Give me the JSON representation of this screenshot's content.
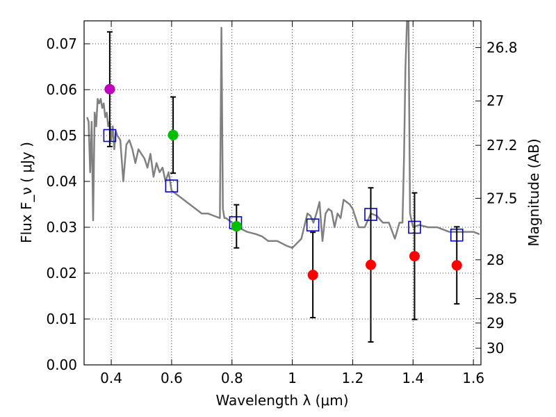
{
  "chart_data": {
    "type": "scatter",
    "xlabel": "Wavelength  λ (μm)",
    "ylabel": "Flux  F_ν  ( μJy )",
    "ylabel_right": "Magnitude (AB)",
    "xlim": [
      0.31,
      1.625
    ],
    "ylim": [
      0.0,
      0.075
    ],
    "grid": true,
    "x_ticks": [
      0.4,
      0.6,
      0.8,
      1.0,
      1.2,
      1.4,
      1.6
    ],
    "x_tick_labels": [
      "0.4",
      "0.6",
      "0.8",
      "1",
      "1.2",
      "1.4",
      "1.6"
    ],
    "y_ticks": [
      0.0,
      0.01,
      0.02,
      0.03,
      0.04,
      0.05,
      0.06,
      0.07
    ],
    "y_tick_labels": [
      "0.00",
      "0.01",
      "0.02",
      "0.03",
      "0.04",
      "0.05",
      "0.06",
      "0.07"
    ],
    "right_ticks": [
      {
        "mag": 26.8,
        "label": "26.8"
      },
      {
        "mag": 27.0,
        "label": "27"
      },
      {
        "mag": 27.2,
        "label": "27.2"
      },
      {
        "mag": 27.5,
        "label": "27.5"
      },
      {
        "mag": 28.0,
        "label": "28"
      },
      {
        "mag": 28.5,
        "label": "28.5"
      },
      {
        "mag": 29.0,
        "label": "29"
      },
      {
        "mag": 30.0,
        "label": "30"
      }
    ],
    "colors": {
      "model_line": "#808080",
      "model_box": "#0000cc",
      "error_bar": "#000000",
      "magenta": "#bf00bf",
      "green": "#00bf00",
      "red": "#ff0000",
      "grid": "#808080"
    },
    "series": [
      {
        "kind": "line",
        "color_key": "model_line",
        "x": [
          0.32,
          0.325,
          0.33,
          0.335,
          0.34,
          0.345,
          0.35,
          0.355,
          0.36,
          0.365,
          0.37,
          0.375,
          0.38,
          0.385,
          0.39,
          0.395,
          0.4,
          0.405,
          0.41,
          0.415,
          0.42,
          0.43,
          0.44,
          0.45,
          0.46,
          0.47,
          0.48,
          0.49,
          0.5,
          0.51,
          0.52,
          0.53,
          0.54,
          0.55,
          0.56,
          0.57,
          0.58,
          0.59,
          0.6,
          0.62,
          0.64,
          0.66,
          0.68,
          0.7,
          0.72,
          0.74,
          0.76,
          0.765,
          0.77,
          0.775,
          0.78,
          0.8,
          0.82,
          0.85,
          0.88,
          0.9,
          0.92,
          0.95,
          0.98,
          1.0,
          1.03,
          1.05,
          1.06,
          1.07,
          1.08,
          1.09,
          1.1,
          1.11,
          1.12,
          1.13,
          1.14,
          1.15,
          1.16,
          1.17,
          1.18,
          1.19,
          1.2,
          1.22,
          1.24,
          1.26,
          1.28,
          1.3,
          1.32,
          1.34,
          1.355,
          1.36,
          1.365,
          1.37,
          1.375,
          1.38,
          1.385,
          1.39,
          1.4,
          1.42,
          1.45,
          1.48,
          1.5,
          1.52,
          1.55,
          1.58,
          1.6,
          1.62
        ],
        "y": [
          0.054,
          0.053,
          0.042,
          0.053,
          0.0315,
          0.055,
          0.052,
          0.058,
          0.057,
          0.058,
          0.056,
          0.057,
          0.054,
          0.055,
          0.052,
          0.053,
          0.049,
          0.052,
          0.047,
          0.051,
          0.05,
          0.049,
          0.04,
          0.048,
          0.049,
          0.047,
          0.044,
          0.047,
          0.046,
          0.045,
          0.043,
          0.046,
          0.041,
          0.044,
          0.042,
          0.043,
          0.04,
          0.042,
          0.038,
          0.037,
          0.036,
          0.035,
          0.034,
          0.033,
          0.033,
          0.0325,
          0.032,
          0.0735,
          0.034,
          0.032,
          0.032,
          0.031,
          0.03,
          0.029,
          0.0285,
          0.028,
          0.027,
          0.027,
          0.026,
          0.0255,
          0.0275,
          0.033,
          0.0325,
          0.031,
          0.033,
          0.0355,
          0.027,
          0.033,
          0.034,
          0.0335,
          0.03,
          0.033,
          0.032,
          0.036,
          0.0355,
          0.035,
          0.034,
          0.03,
          0.03,
          0.033,
          0.0325,
          0.031,
          0.031,
          0.0275,
          0.031,
          0.031,
          0.031,
          0.045,
          0.065,
          0.075,
          0.075,
          0.033,
          0.03,
          0.0305,
          0.03,
          0.03,
          0.0295,
          0.029,
          0.029,
          0.029,
          0.029,
          0.0285
        ]
      },
      {
        "kind": "open-square",
        "color_key": "model_box",
        "x": [
          0.395,
          0.6,
          0.812,
          1.068,
          1.26,
          1.405,
          1.545
        ],
        "y": [
          0.05,
          0.039,
          0.031,
          0.0305,
          0.0328,
          0.03,
          0.0283
        ]
      },
      {
        "kind": "filled-circle",
        "color_key": "magenta",
        "x": [
          0.395
        ],
        "y": [
          0.0601
        ],
        "yerr_low": [
          0.0125
        ],
        "yerr_high": [
          0.0125
        ]
      },
      {
        "kind": "filled-circle",
        "color_key": "green",
        "x": [
          0.605,
          0.815
        ],
        "y": [
          0.0501,
          0.0302
        ],
        "yerr_low": [
          0.0083,
          0.0047
        ],
        "yerr_high": [
          0.0083,
          0.0047
        ]
      },
      {
        "kind": "filled-circle",
        "color_key": "red",
        "x": [
          1.068,
          1.26,
          1.405,
          1.545
        ],
        "y": [
          0.0196,
          0.0218,
          0.0237,
          0.0217
        ],
        "yerr_low": [
          0.0093,
          0.0168,
          0.0138,
          0.0084
        ],
        "yerr_high": [
          0.0093,
          0.0168,
          0.0138,
          0.0084
        ]
      }
    ]
  }
}
